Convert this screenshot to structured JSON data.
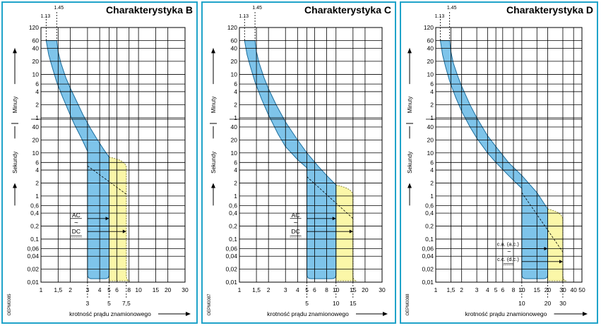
{
  "colors": {
    "frame": "#1fa3c9",
    "blue_band": "#7ec4ea",
    "blue_edge": "#1b6c9b",
    "yellow_band": "#fbf7a8",
    "yellow_edge": "#8c8a3e",
    "grid": "#000000"
  },
  "chart_data": [
    {
      "type": "area",
      "title": "Charakterystyka B",
      "xlabel": "krotność prądu znamionowego",
      "ylabel_sec": "Sekundy",
      "ylabel_min": "Minuty",
      "side_code": "OEPM0085",
      "x_ticks": [
        1,
        1.5,
        2,
        3,
        4,
        5,
        6,
        8,
        10,
        15,
        20,
        30
      ],
      "x_tick_labels": [
        "1",
        "1,5",
        "2",
        "3",
        "4",
        "5",
        "6",
        "8",
        "10",
        "15",
        "20",
        "30"
      ],
      "xlim": [
        1,
        30
      ],
      "sec_ticks": [
        0.01,
        0.02,
        0.04,
        0.06,
        0.1,
        0.2,
        0.4,
        0.6,
        1,
        2,
        4,
        6,
        10,
        20,
        40
      ],
      "sec_tick_labels": [
        "0,01",
        "0,02",
        "0,04",
        "0,06",
        "0,1",
        "0,2",
        "0,4",
        "0,6",
        "1",
        "2",
        "4",
        "6",
        "10",
        "20",
        "40"
      ],
      "min_ticks": [
        1,
        2,
        4,
        6,
        10,
        20,
        40,
        60,
        120
      ],
      "min_tick_labels": [
        "1",
        "2",
        "4",
        "6",
        "10",
        "20",
        "40",
        "60",
        "120"
      ],
      "top_markers": [
        {
          "x": 1.13,
          "label": "1.13"
        },
        {
          "x": 1.45,
          "label": "1.45"
        }
      ],
      "bottom_markers": [
        {
          "x": 3,
          "label": "3"
        },
        {
          "x": 5,
          "label": "5"
        },
        {
          "x": 7.5,
          "label": "7,5"
        }
      ],
      "ac_range": [
        3,
        5
      ],
      "dc_range": [
        3,
        7.5
      ],
      "ac_label": "AC",
      "dc_label": "DC",
      "labels_at": 3,
      "blue_upper": [
        [
          1.45,
          3600
        ],
        [
          1.5,
          2000
        ],
        [
          1.6,
          1100
        ],
        [
          1.8,
          500
        ],
        [
          2,
          290
        ],
        [
          2.3,
          150
        ],
        [
          2.7,
          70
        ],
        [
          3.2,
          38
        ],
        [
          3.8,
          20
        ],
        [
          4.4,
          12
        ],
        [
          5,
          8
        ]
      ],
      "blue_lower": [
        [
          1.13,
          3600
        ],
        [
          1.2,
          1700
        ],
        [
          1.3,
          900
        ],
        [
          1.45,
          400
        ],
        [
          1.65,
          190
        ],
        [
          1.9,
          90
        ],
        [
          2.2,
          45
        ],
        [
          2.6,
          22
        ],
        [
          3,
          11
        ]
      ],
      "yellow_tip": [
        5,
        8
      ],
      "yellow_right": 7.5,
      "dashed_line": [
        [
          3,
          5
        ],
        [
          7.5,
          1.1
        ]
      ]
    },
    {
      "type": "area",
      "title": "Charakterystyka C",
      "xlabel": "krotność prądu znamionowego",
      "ylabel_sec": "Sekundy",
      "ylabel_min": "Minuty",
      "side_code": "OEPM0087",
      "x_ticks": [
        1,
        1.5,
        2,
        3,
        4,
        5,
        6,
        8,
        10,
        15,
        20,
        30
      ],
      "x_tick_labels": [
        "1",
        "1,5",
        "2",
        "3",
        "4",
        "5",
        "6",
        "8",
        "10",
        "15",
        "20",
        "30"
      ],
      "xlim": [
        1,
        30
      ],
      "sec_ticks": [
        0.01,
        0.02,
        0.04,
        0.06,
        0.1,
        0.2,
        0.4,
        0.6,
        1,
        2,
        4,
        6,
        10,
        20,
        40
      ],
      "sec_tick_labels": [
        "0,01",
        "0,02",
        "0,04",
        "0,06",
        "0,1",
        "0,2",
        "0,4",
        "0,6",
        "1",
        "2",
        "4",
        "6",
        "10",
        "20",
        "40"
      ],
      "min_ticks": [
        1,
        2,
        4,
        6,
        10,
        20,
        40,
        60,
        120
      ],
      "min_tick_labels": [
        "1",
        "2",
        "4",
        "6",
        "10",
        "20",
        "40",
        "60",
        "120"
      ],
      "top_markers": [
        {
          "x": 1.13,
          "label": "1.13"
        },
        {
          "x": 1.45,
          "label": "1.45"
        }
      ],
      "bottom_markers": [
        {
          "x": 5,
          "label": "5"
        },
        {
          "x": 10,
          "label": "10"
        },
        {
          "x": 15,
          "label": "15"
        }
      ],
      "ac_range": [
        5,
        10
      ],
      "dc_range": [
        5,
        15
      ],
      "ac_label": "AC",
      "dc_label": "DC",
      "labels_at": 5,
      "blue_upper": [
        [
          1.45,
          3600
        ],
        [
          1.5,
          2000
        ],
        [
          1.6,
          1100
        ],
        [
          1.8,
          500
        ],
        [
          2,
          280
        ],
        [
          2.4,
          120
        ],
        [
          3,
          50
        ],
        [
          4,
          20
        ],
        [
          5,
          10
        ],
        [
          6.5,
          5
        ],
        [
          8,
          3
        ],
        [
          10,
          1.8
        ]
      ],
      "blue_lower": [
        [
          1.13,
          3600
        ],
        [
          1.2,
          1700
        ],
        [
          1.3,
          900
        ],
        [
          1.45,
          400
        ],
        [
          1.7,
          160
        ],
        [
          2,
          70
        ],
        [
          2.5,
          28
        ],
        [
          3,
          14
        ],
        [
          4,
          7
        ],
        [
          5,
          4.5
        ]
      ],
      "yellow_tip": [
        10,
        1.8
      ],
      "yellow_right": 15,
      "dashed_line": [
        [
          5,
          2.8
        ],
        [
          15,
          0.3
        ]
      ]
    },
    {
      "type": "area",
      "title": "Charakterystyka D",
      "xlabel": "krotność prądu znamionowego",
      "ylabel_sec": "Sekundy",
      "ylabel_min": "Minuty",
      "side_code": "OEPM0088",
      "x_ticks": [
        1,
        1.5,
        2,
        3,
        4,
        5,
        6,
        8,
        10,
        15,
        20,
        30,
        40,
        50
      ],
      "x_tick_labels": [
        "1",
        "1,5",
        "2",
        "3",
        "4",
        "5",
        "6",
        "8",
        "10",
        "15",
        "20",
        "30",
        "40",
        "50"
      ],
      "xlim": [
        1,
        50
      ],
      "sec_ticks": [
        0.01,
        0.02,
        0.04,
        0.06,
        0.1,
        0.2,
        0.4,
        0.6,
        1,
        2,
        4,
        6,
        10,
        20,
        40
      ],
      "sec_tick_labels": [
        "0,01",
        "0,02",
        "0,04",
        "0,06",
        "0,1",
        "0,2",
        "0,4",
        "0,6",
        "1",
        "2",
        "4",
        "6",
        "10",
        "20",
        "40"
      ],
      "min_ticks": [
        1,
        2,
        4,
        6,
        10,
        20,
        40,
        60,
        120
      ],
      "min_tick_labels": [
        "1",
        "2",
        "4",
        "6",
        "10",
        "20",
        "40",
        "60",
        "120"
      ],
      "top_markers": [
        {
          "x": 1.13,
          "label": "1.13"
        },
        {
          "x": 1.45,
          "label": "1.45"
        }
      ],
      "bottom_markers": [
        {
          "x": 10,
          "label": "10"
        },
        {
          "x": 20,
          "label": "20"
        },
        {
          "x": 30,
          "label": "30"
        }
      ],
      "ac_range": [
        10,
        20
      ],
      "dc_range": [
        10,
        30
      ],
      "ac_label": "c.a. (a.c.)",
      "dc_label": "c.c. (d.c.)",
      "labels_at": 10,
      "blue_upper": [
        [
          1.45,
          3600
        ],
        [
          1.5,
          2000
        ],
        [
          1.6,
          1100
        ],
        [
          1.8,
          550
        ],
        [
          2,
          320
        ],
        [
          2.5,
          120
        ],
        [
          3,
          60
        ],
        [
          4,
          25
        ],
        [
          5,
          14
        ],
        [
          7,
          6
        ],
        [
          10,
          3
        ],
        [
          15,
          1.2
        ],
        [
          20,
          0.5
        ]
      ],
      "blue_lower": [
        [
          1.13,
          3600
        ],
        [
          1.2,
          1700
        ],
        [
          1.3,
          900
        ],
        [
          1.45,
          420
        ],
        [
          1.7,
          180
        ],
        [
          2,
          85
        ],
        [
          2.5,
          40
        ],
        [
          3,
          22
        ],
        [
          4,
          10
        ],
        [
          5,
          6
        ],
        [
          7,
          3
        ],
        [
          10,
          1.5
        ]
      ],
      "yellow_tip": [
        20,
        0.5
      ],
      "yellow_right": 30,
      "dashed_line": [
        [
          10,
          1.2
        ],
        [
          30,
          0.05
        ]
      ]
    }
  ]
}
